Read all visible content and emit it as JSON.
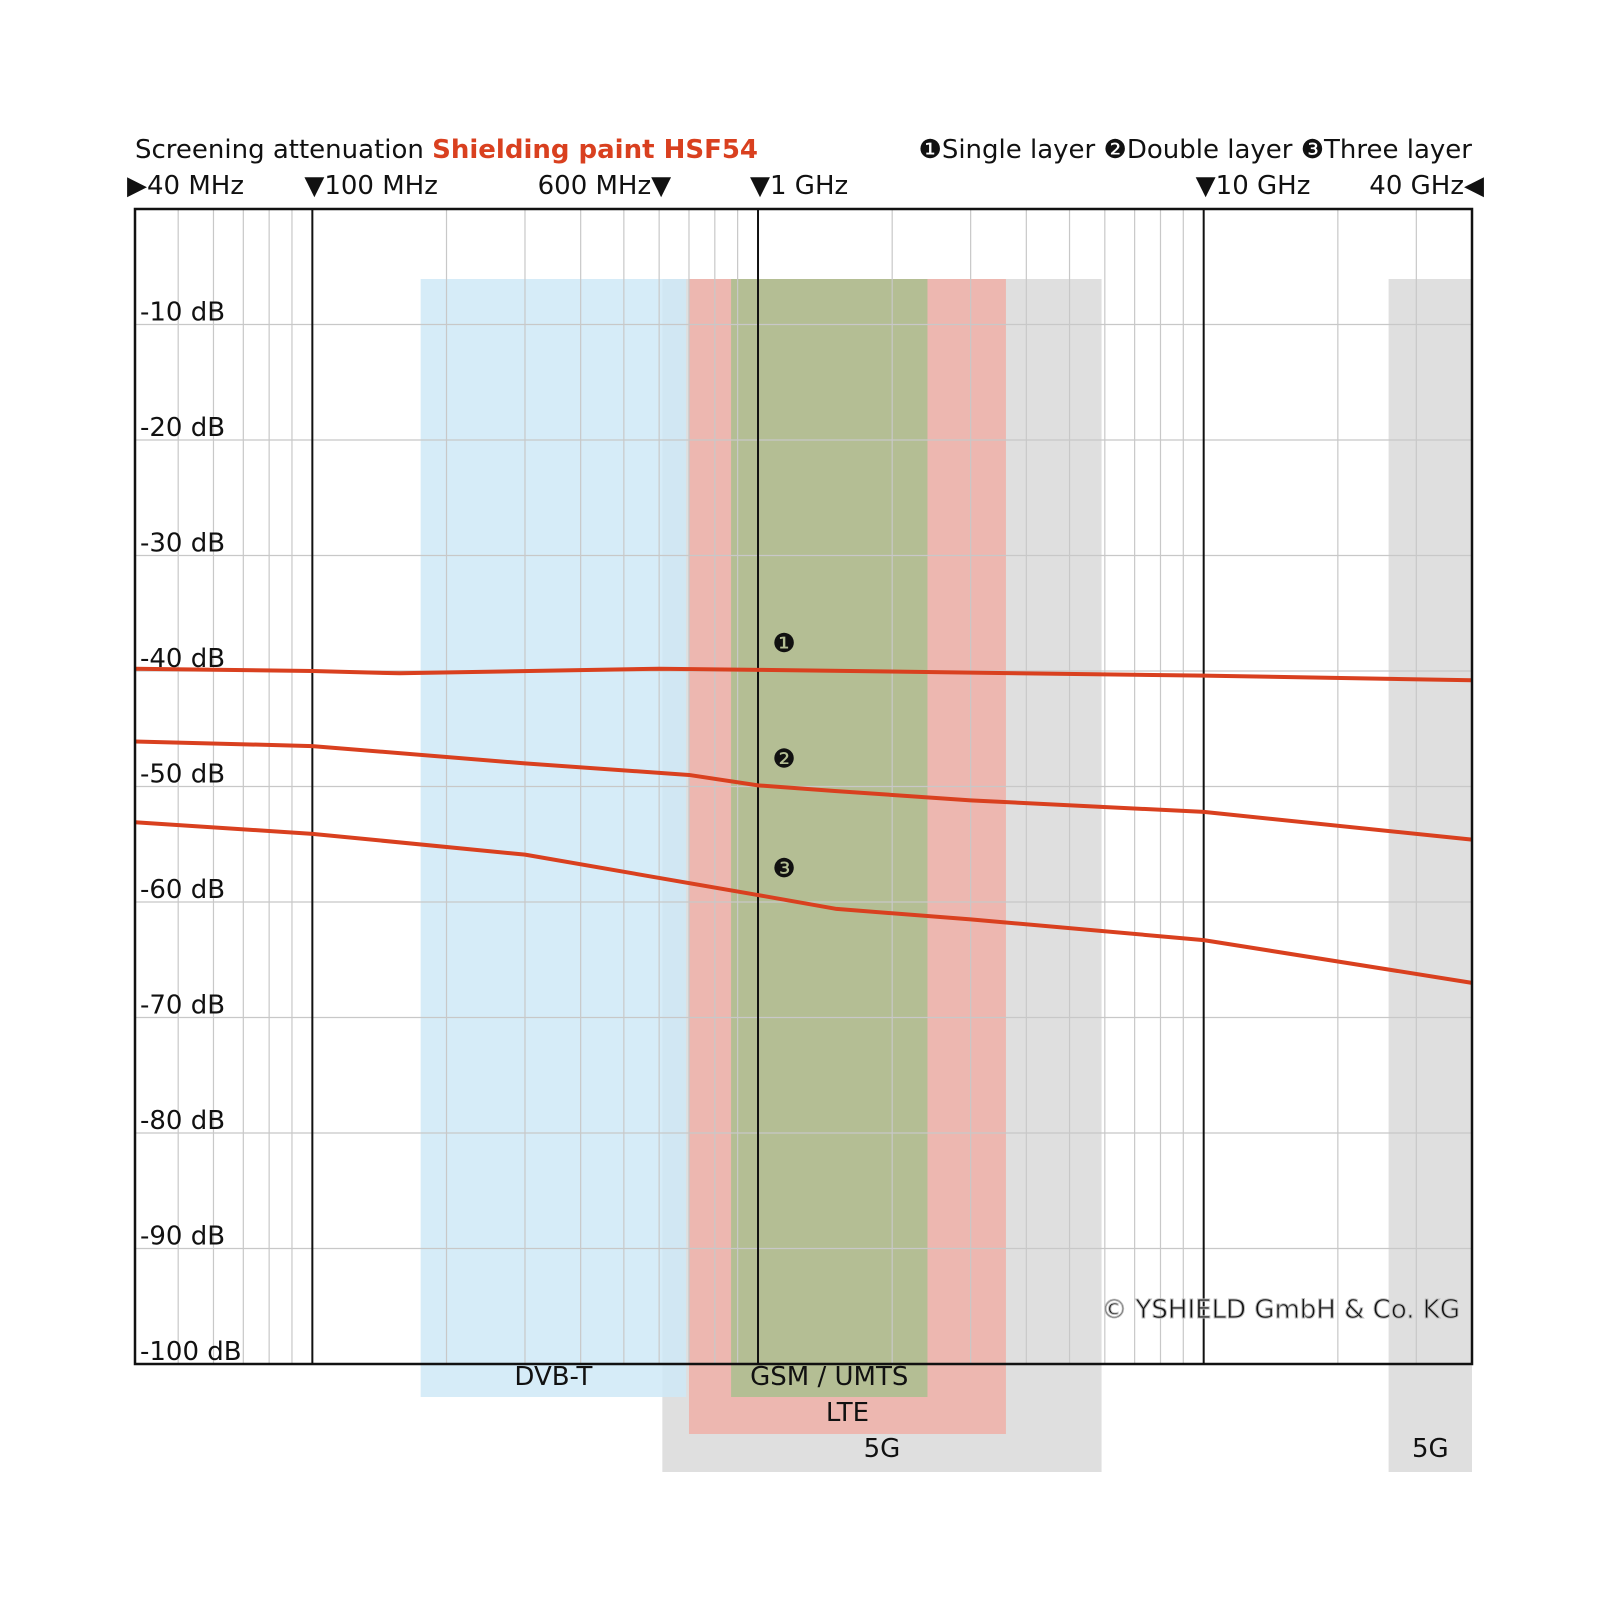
{
  "chart_data": {
    "type": "line",
    "title": "Screening attenuation",
    "title_highlight": "Shielding paint HSF54",
    "title_highlight_color": "#d9401f",
    "x_log": true,
    "xlim": [
      40,
      40000
    ],
    "xticks": [
      {
        "value": 40,
        "label": "▶40 MHz"
      },
      {
        "value": 100,
        "label": "▼100 MHz"
      },
      {
        "value": 600,
        "label": "600 MHz▼"
      },
      {
        "value": 1000,
        "label": "▼1 GHz"
      },
      {
        "value": 10000,
        "label": "▼10 GHz"
      },
      {
        "value": 40000,
        "label": "40 GHz◀"
      }
    ],
    "x_minor_ticks": [
      50,
      60,
      70,
      80,
      90,
      200,
      300,
      400,
      500,
      700,
      800,
      900,
      2000,
      3000,
      4000,
      5000,
      6000,
      7000,
      8000,
      9000,
      20000,
      30000
    ],
    "ylim": [
      -100,
      0
    ],
    "yticks": [
      {
        "value": -10,
        "label": "-10 dB"
      },
      {
        "value": -20,
        "label": "-20 dB"
      },
      {
        "value": -30,
        "label": "-30 dB"
      },
      {
        "value": -40,
        "label": "-40 dB"
      },
      {
        "value": -50,
        "label": "-50 dB"
      },
      {
        "value": -60,
        "label": "-60 dB"
      },
      {
        "value": -70,
        "label": "-70 dB"
      },
      {
        "value": -80,
        "label": "-80 dB"
      },
      {
        "value": -90,
        "label": "-90 dB"
      },
      {
        "value": -100,
        "label": "-100 dB"
      }
    ],
    "grid": true,
    "bands": [
      {
        "label": "5G",
        "from": 610,
        "to": 5900,
        "color": "#d9d9d9"
      },
      {
        "label": "5G",
        "from": 26000,
        "to": 40000,
        "color": "#d9d9d9"
      },
      {
        "label": "LTE",
        "from": 700,
        "to": 3600,
        "color": "#f0b0a8"
      },
      {
        "label": "GSM / UMTS",
        "from": 870,
        "to": 2400,
        "color": "#a9bf8f"
      },
      {
        "label": "DVB-T",
        "from": 175,
        "to": 690,
        "color": "#cfe9f7"
      }
    ],
    "series": [
      {
        "name": "Single layer",
        "marker": "❶",
        "color": "#d9401f",
        "x": [
          40,
          100,
          157,
          600,
          1000,
          10000,
          40000
        ],
        "values": [
          -39.8,
          -40,
          -40.2,
          -39.8,
          -39.9,
          -40.4,
          -40.8
        ]
      },
      {
        "name": "Double layer",
        "marker": "❷",
        "color": "#d9401f",
        "x": [
          40,
          100,
          300,
          700,
          1000,
          1500,
          3000,
          10000,
          40000
        ],
        "values": [
          -46.1,
          -46.5,
          -48,
          -49,
          -49.9,
          -50.4,
          -51.2,
          -52.2,
          -54.6
        ]
      },
      {
        "name": "Three layer",
        "marker": "❸",
        "color": "#d9401f",
        "x": [
          40,
          100,
          300,
          1000,
          1500,
          3000,
          10000,
          40000
        ],
        "values": [
          -53.1,
          -54.1,
          -55.9,
          -59.4,
          -60.6,
          -61.5,
          -63.3,
          -67
        ]
      }
    ],
    "annotation": "© YSHIELD GmbH & Co. KG"
  }
}
